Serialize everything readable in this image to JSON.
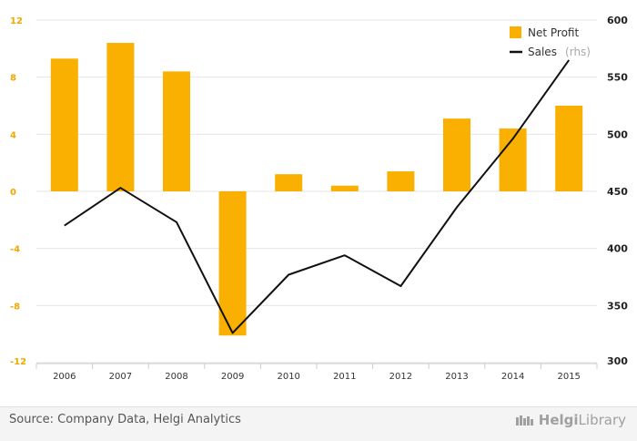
{
  "chart_data": {
    "type": "bar",
    "categories": [
      "2006",
      "2007",
      "2008",
      "2009",
      "2010",
      "2011",
      "2012",
      "2013",
      "2014",
      "2015"
    ],
    "series": [
      {
        "name": "Net Profit",
        "type": "bar",
        "axis": "left",
        "color": "#f9b000",
        "values": [
          9.3,
          10.4,
          8.4,
          -10.1,
          1.2,
          0.4,
          1.4,
          5.1,
          4.4,
          6.0
        ]
      },
      {
        "name": "Sales",
        "name_suffix": "(rhs)",
        "type": "line",
        "axis": "right",
        "color": "#111111",
        "values": [
          420,
          453,
          423,
          326,
          377,
          394,
          367,
          436,
          496,
          565
        ]
      }
    ],
    "y_left": {
      "ticks": [
        12,
        8,
        4,
        0,
        -4,
        -8,
        -12
      ],
      "ylim": [
        -12,
        12
      ]
    },
    "y_right": {
      "ticks": [
        600,
        550,
        500,
        450,
        400,
        350,
        300
      ],
      "ylim": [
        300,
        600
      ]
    },
    "grid": true,
    "legend": "top-right"
  },
  "footer": {
    "source": "Source: Company Data, Helgi Analytics",
    "brand_bold": "Helgi",
    "brand_light": "Library"
  }
}
